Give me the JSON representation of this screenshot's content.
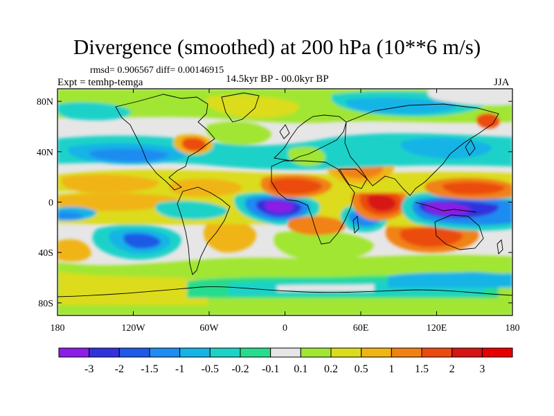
{
  "title": "Divergence (smoothed) at 200 hPa (10**6 m/s)",
  "stats": "rmsd= 0.906567 diff= 0.00146915",
  "experiment": "Expt = temhp-temga",
  "period": "14.5kyr BP - 00.0kyr BP",
  "season": "JJA",
  "axes": {
    "lat_labels": [
      "80N",
      "40N",
      "0",
      "40S",
      "80S"
    ],
    "lon_labels": [
      "180",
      "120W",
      "60W",
      "0",
      "60E",
      "120E",
      "180"
    ]
  },
  "colorbar": {
    "labels": [
      "-3",
      "-2",
      "-1.5",
      "-1",
      "-0.5",
      "-0.2",
      "-0.1",
      "0.1",
      "0.2",
      "0.5",
      "1",
      "1.5",
      "2",
      "3"
    ],
    "colors": [
      "#8c1ee6",
      "#3232dc",
      "#1e5ae6",
      "#1e8cf0",
      "#14b4e6",
      "#1ed2c8",
      "#28dc8c",
      "#e6e6e6",
      "#a0e632",
      "#dcdc1e",
      "#f0b414",
      "#f08214",
      "#eb4b0f",
      "#d71414",
      "#e60000"
    ]
  },
  "colors": {
    "background": "#e6e6e6",
    "coast": "#000000"
  }
}
